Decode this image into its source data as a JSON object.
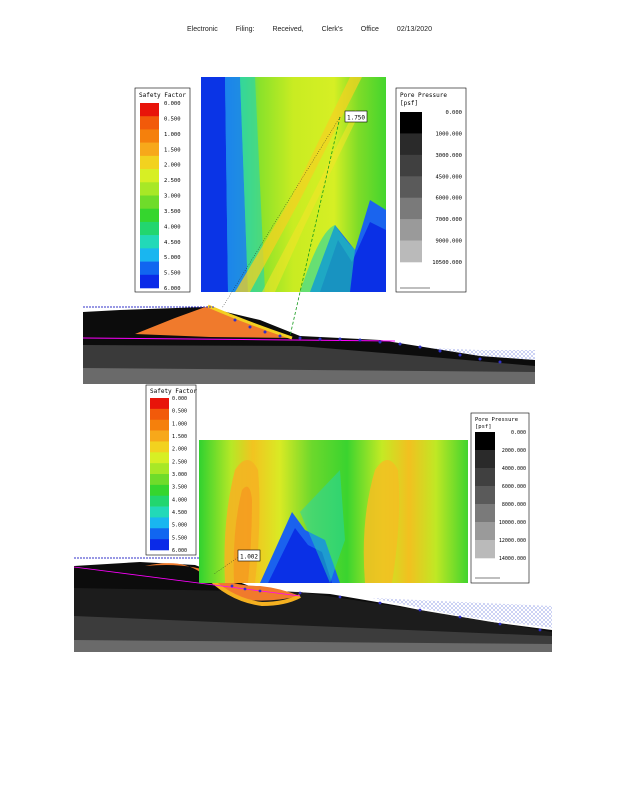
{
  "header": {
    "items": [
      "Electronic",
      "Filing:",
      "Received,",
      "Clerk's",
      "Office",
      "02/13/2020"
    ]
  },
  "figure1": {
    "sf_legend": {
      "title": "Safety Factor",
      "values": [
        "0.000",
        "0.500",
        "1.000",
        "1.500",
        "2.000",
        "2.500",
        "3.000",
        "3.500",
        "4.000",
        "4.500",
        "5.000",
        "5.500",
        "6.000"
      ],
      "colors": [
        "#e8140a",
        "#f25a0a",
        "#f5800c",
        "#f7a81a",
        "#f2d21f",
        "#d7ef24",
        "#a8e826",
        "#6fdc2a",
        "#35d62e",
        "#22d66f",
        "#22d9b8",
        "#19b6f0",
        "#1166f0",
        "#0a2ae8"
      ]
    },
    "pp_legend": {
      "title": "Pore Pressure",
      "unit": "[psf]",
      "values": [
        "0.000",
        "1000.000",
        "3000.000",
        "4500.000",
        "6000.000",
        "7000.000",
        "9000.000",
        "10500.000"
      ],
      "colors": [
        "#000000",
        "#2a2a2a",
        "#404040",
        "#5a5a5a",
        "#7a7a7a",
        "#9a9a9a",
        "#bababa"
      ]
    },
    "min_sf_label": "1.750"
  },
  "figure2": {
    "sf_legend": {
      "title": "Safety Factor",
      "values": [
        "0.000",
        "0.500",
        "1.000",
        "1.500",
        "2.000",
        "2.500",
        "3.000",
        "3.500",
        "4.000",
        "4.500",
        "5.000",
        "5.500",
        "6.000"
      ],
      "colors": [
        "#e8140a",
        "#f25a0a",
        "#f5800c",
        "#f7a81a",
        "#f2d21f",
        "#d7ef24",
        "#a8e826",
        "#6fdc2a",
        "#35d62e",
        "#22d66f",
        "#22d9b8",
        "#19b6f0",
        "#1166f0",
        "#0a2ae8"
      ]
    },
    "pp_legend": {
      "title": "Pore Pressure",
      "unit": "[psf]",
      "values": [
        "0.000",
        "2000.000",
        "4000.000",
        "6000.000",
        "8000.000",
        "10000.000",
        "12000.000",
        "14000.000"
      ],
      "colors": [
        "#000000",
        "#2a2a2a",
        "#404040",
        "#5a5a5a",
        "#7a7a7a",
        "#9a9a9a",
        "#bababa"
      ]
    },
    "min_sf_label": "1.002"
  }
}
